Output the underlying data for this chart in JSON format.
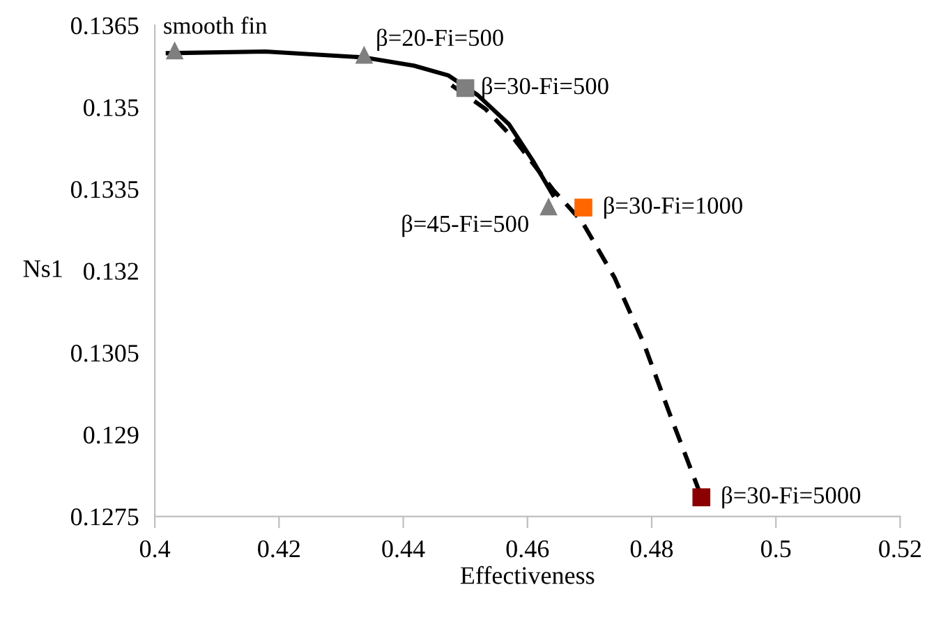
{
  "chart_data": {
    "type": "line",
    "xlabel": "Effectiveness",
    "ylabel": "Ns1",
    "xlim": [
      0.4,
      0.52
    ],
    "xticks": [
      0.4,
      0.42,
      0.44,
      0.46,
      0.48,
      0.5,
      0.52
    ],
    "ylim": [
      0.1275,
      0.1365
    ],
    "yticks": [
      0.1275,
      0.129,
      0.1305,
      0.132,
      0.1335,
      0.135,
      0.1365
    ],
    "grid": false,
    "legend": false,
    "series": [
      {
        "color": "#000000",
        "line_style": "solid",
        "marker": "none",
        "x": [
          0.4021,
          0.4178,
          0.4337,
          0.4417,
          0.4473,
          0.452,
          0.457,
          0.4608,
          0.4641
        ],
        "values": [
          0.13599,
          0.13602,
          0.13591,
          0.13576,
          0.13558,
          0.13522,
          0.13469,
          0.13403,
          0.13339
        ]
      },
      {
        "color": "#000000",
        "line_style": "dashed",
        "marker": "none",
        "x": [
          0.4478,
          0.4532,
          0.4579,
          0.4641,
          0.4688,
          0.474,
          0.4787,
          0.4829,
          0.4877
        ],
        "values": [
          0.1354,
          0.13497,
          0.13441,
          0.13349,
          0.1329,
          0.13188,
          0.13068,
          0.12938,
          0.12795
        ]
      },
      {
        "type": "scatter",
        "marker": "triangle",
        "colors": [
          "#7f7f7f",
          "#7f7f7f",
          "#7f7f7f"
        ],
        "x": [
          0.4032,
          0.4337,
          0.4634
        ],
        "values": [
          0.13604,
          0.13596,
          0.13318
        ]
      },
      {
        "type": "scatter",
        "marker": "square",
        "colors": [
          "#7f7f7f",
          "#ff6600",
          "#8b0000"
        ],
        "x": [
          0.45,
          0.469,
          0.488
        ],
        "values": [
          0.13535,
          0.13316,
          0.12785
        ]
      }
    ],
    "annotations": [
      {
        "text": "smooth fin",
        "x": 0.4032,
        "y": 0.13604
      },
      {
        "text": "β=20-Fi=500",
        "x": 0.4337,
        "y": 0.13596
      },
      {
        "text": "β=30-Fi=500",
        "x": 0.45,
        "y": 0.13535
      },
      {
        "text": "β=45-Fi=500",
        "x": 0.4634,
        "y": 0.13318
      },
      {
        "text": "β=30-Fi=1000",
        "x": 0.469,
        "y": 0.13316
      },
      {
        "text": "β=30-Fi=5000",
        "x": 0.488,
        "y": 0.12785
      }
    ]
  }
}
